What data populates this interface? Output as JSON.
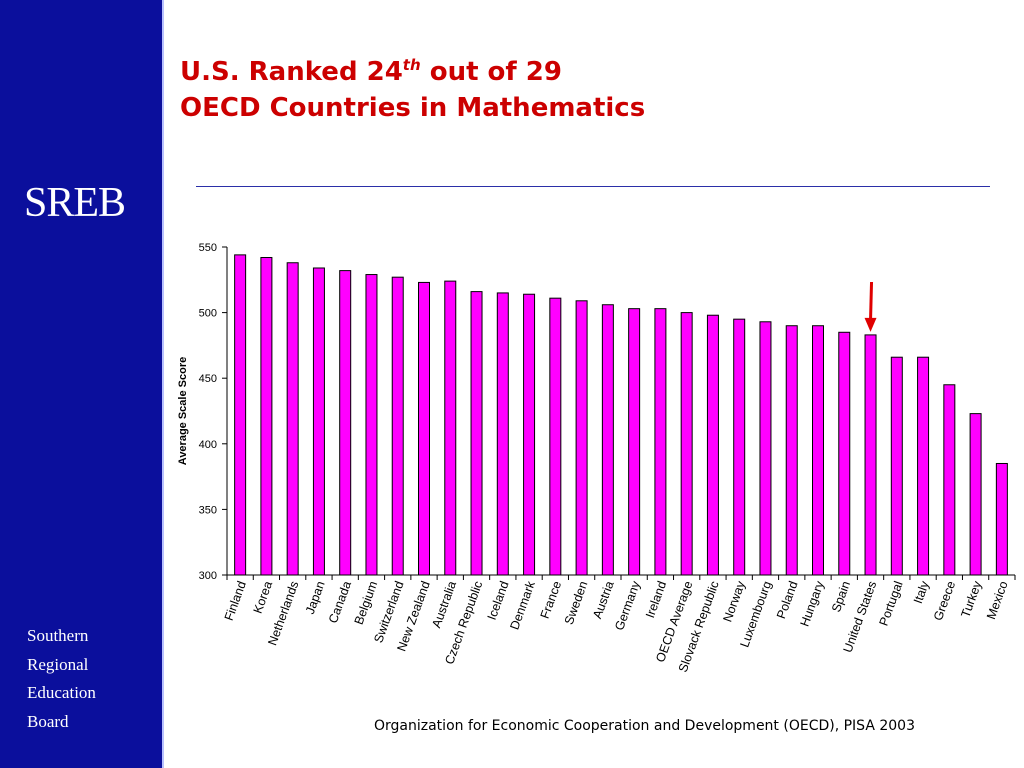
{
  "sidebar": {
    "logo": "SREB",
    "org_lines": [
      "Southern",
      "Regional",
      "Education",
      "Board"
    ]
  },
  "title": {
    "line1_prefix": "U.S. Ranked 24",
    "line1_sup": "th",
    "line1_suffix": " out of 29",
    "line2": "OECD Countries in Mathematics"
  },
  "source": "Organization for Economic Cooperation and Development (OECD), PISA 2003",
  "colors": {
    "sidebar": "#0b0f9c",
    "title": "#cc0000",
    "bar_fill": "#ff00ff",
    "arrow": "#e00000"
  },
  "chart_data": {
    "type": "bar",
    "ylabel": "Average Scale Score",
    "xlabel": "",
    "ylim": [
      300,
      550
    ],
    "yticks": [
      300,
      350,
      400,
      450,
      500,
      550
    ],
    "grid": false,
    "highlight": "United States",
    "categories": [
      "Finland",
      "Korea",
      "Netherlands",
      "Japan",
      "Canada",
      "Belgium",
      "Switzerland",
      "New Zealand",
      "Australia",
      "Czech Republic",
      "Iceland",
      "Denmark",
      "France",
      "Sweden",
      "Austria",
      "Germany",
      "Ireland",
      "OECD Average",
      "Slovack Republic",
      "Norway",
      "Luxembourg",
      "Poland",
      "Hungary",
      "Spain",
      "United States",
      "Portugal",
      "Italy",
      "Greece",
      "Turkey",
      "Mexico"
    ],
    "values": [
      544,
      542,
      538,
      534,
      532,
      529,
      527,
      523,
      524,
      516,
      515,
      514,
      511,
      509,
      506,
      503,
      503,
      500,
      498,
      495,
      493,
      490,
      490,
      485,
      483,
      466,
      466,
      445,
      423,
      385
    ]
  }
}
